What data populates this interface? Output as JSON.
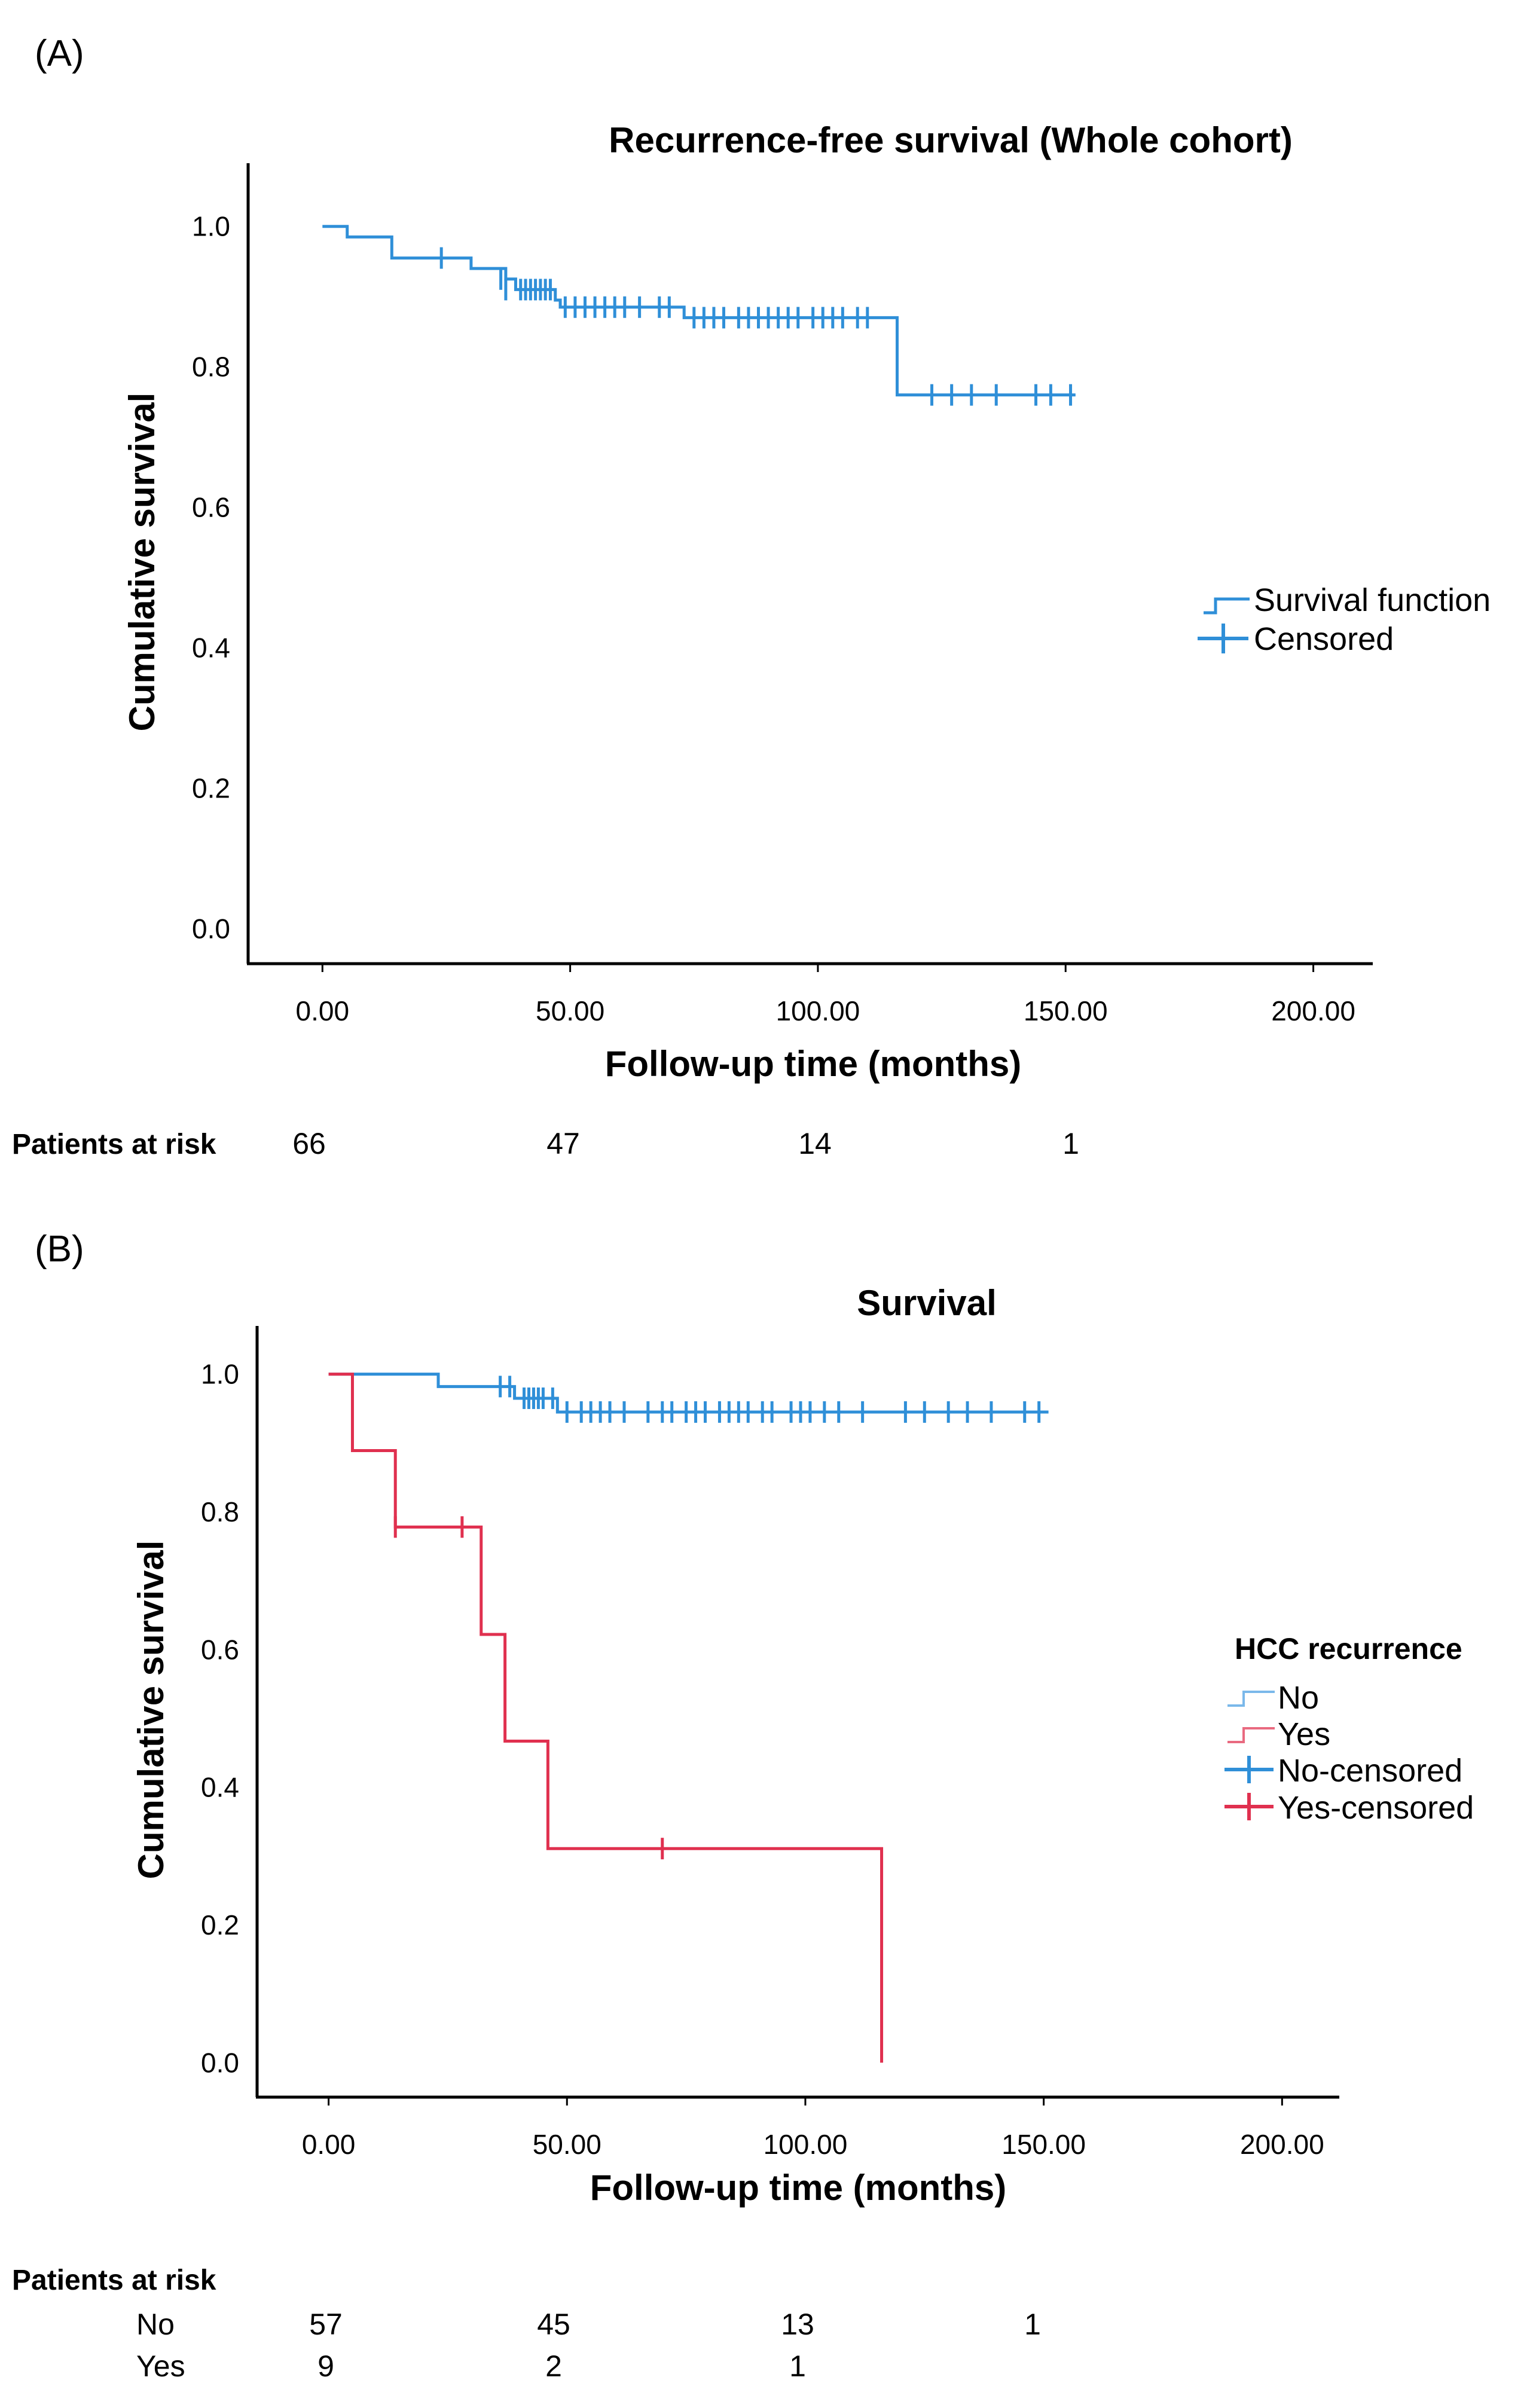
{
  "chart_data": [
    {
      "panel_label": "(A)",
      "type": "line",
      "subtype": "kaplan-meier",
      "title": "Recurrence-free survival (Whole cohort)",
      "xlabel": "Follow-up time (months)",
      "ylabel": "Cumulative survival",
      "xlim": [
        -15,
        212
      ],
      "ylim": [
        -0.05,
        1.09
      ],
      "xticks": [
        0,
        50,
        100,
        150,
        200
      ],
      "xtick_labels": [
        "0.00",
        "50.00",
        "100.00",
        "150.00",
        "200.00"
      ],
      "yticks": [
        0,
        0.2,
        0.4,
        0.6,
        0.8,
        1.0
      ],
      "ytick_labels": [
        "0.0",
        "0.2",
        "0.4",
        "0.6",
        "0.8",
        "1.0"
      ],
      "color": "#2f8fd8",
      "series": [
        {
          "name": "Survival function",
          "color": "#2f8fd8",
          "steps": [
            [
              0,
              1.0
            ],
            [
              5,
              0.985
            ],
            [
              14,
              0.97
            ],
            [
              14,
              0.955
            ],
            [
              30,
              0.94
            ],
            [
              37,
              0.925
            ],
            [
              39,
              0.91
            ],
            [
              47,
              0.895
            ],
            [
              48,
              0.885
            ],
            [
              73,
              0.87
            ],
            [
              116,
              0.87
            ],
            [
              116,
              0.76
            ],
            [
              152,
              0.76
            ]
          ],
          "censored": [
            [
              24,
              0.955
            ],
            [
              36,
              0.925
            ],
            [
              37,
              0.91
            ],
            [
              40,
              0.91
            ],
            [
              41,
              0.91
            ],
            [
              42,
              0.91
            ],
            [
              43,
              0.91
            ],
            [
              44,
              0.91
            ],
            [
              45,
              0.91
            ],
            [
              46,
              0.91
            ],
            [
              49,
              0.885
            ],
            [
              51,
              0.885
            ],
            [
              53,
              0.885
            ],
            [
              55,
              0.885
            ],
            [
              57,
              0.885
            ],
            [
              59,
              0.885
            ],
            [
              61,
              0.885
            ],
            [
              64,
              0.885
            ],
            [
              68,
              0.885
            ],
            [
              70,
              0.885
            ],
            [
              75,
              0.87
            ],
            [
              77,
              0.87
            ],
            [
              79,
              0.87
            ],
            [
              81,
              0.87
            ],
            [
              84,
              0.87
            ],
            [
              86,
              0.87
            ],
            [
              88,
              0.87
            ],
            [
              90,
              0.87
            ],
            [
              92,
              0.87
            ],
            [
              94,
              0.87
            ],
            [
              96,
              0.87
            ],
            [
              99,
              0.87
            ],
            [
              101,
              0.87
            ],
            [
              103,
              0.87
            ],
            [
              105,
              0.87
            ],
            [
              108,
              0.87
            ],
            [
              110,
              0.87
            ],
            [
              123,
              0.76
            ],
            [
              127,
              0.76
            ],
            [
              131,
              0.76
            ],
            [
              136,
              0.76
            ],
            [
              144,
              0.76
            ],
            [
              147,
              0.76
            ],
            [
              151,
              0.76
            ]
          ]
        }
      ],
      "legend": [
        "Survival function",
        "Censored"
      ],
      "risk_table": {
        "header": "Patients at risk",
        "rows": [
          {
            "label": "",
            "values": [
              "66",
              "47",
              "14",
              "1"
            ]
          }
        ]
      }
    },
    {
      "panel_label": "(B)",
      "type": "line",
      "subtype": "kaplan-meier",
      "title": "Survival",
      "xlabel": "Follow-up time (months)",
      "ylabel": "Cumulative survival",
      "xlim": [
        -15,
        212
      ],
      "ylim": [
        -0.05,
        1.07
      ],
      "xticks": [
        0,
        50,
        100,
        150,
        200
      ],
      "xtick_labels": [
        "0.00",
        "50.00",
        "100.00",
        "150.00",
        "200.00"
      ],
      "yticks": [
        0,
        0.2,
        0.4,
        0.6,
        0.8,
        1.0
      ],
      "ytick_labels": [
        "0.0",
        "0.2",
        "0.4",
        "0.6",
        "0.8",
        "1.0"
      ],
      "legend_title": "HCC recurrence",
      "legend": [
        "No",
        "Yes",
        "No-censored",
        "Yes-censored"
      ],
      "series": [
        {
          "name": "No",
          "color": "#2f8fd8",
          "steps": [
            [
              0,
              1.0
            ],
            [
              23,
              0.982
            ],
            [
              39,
              0.965
            ],
            [
              48,
              0.945
            ],
            [
              151,
              0.945
            ]
          ],
          "censored": [
            [
              36,
              0.982
            ],
            [
              38,
              0.982
            ],
            [
              41,
              0.965
            ],
            [
              42,
              0.965
            ],
            [
              43,
              0.965
            ],
            [
              44,
              0.965
            ],
            [
              45,
              0.965
            ],
            [
              47,
              0.965
            ],
            [
              50,
              0.945
            ],
            [
              53,
              0.945
            ],
            [
              55,
              0.945
            ],
            [
              57,
              0.945
            ],
            [
              59,
              0.945
            ],
            [
              62,
              0.945
            ],
            [
              67,
              0.945
            ],
            [
              70,
              0.945
            ],
            [
              72,
              0.945
            ],
            [
              75,
              0.945
            ],
            [
              77,
              0.945
            ],
            [
              79,
              0.945
            ],
            [
              82,
              0.945
            ],
            [
              84,
              0.945
            ],
            [
              86,
              0.945
            ],
            [
              88,
              0.945
            ],
            [
              91,
              0.945
            ],
            [
              93,
              0.945
            ],
            [
              97,
              0.945
            ],
            [
              99,
              0.945
            ],
            [
              101,
              0.945
            ],
            [
              104,
              0.945
            ],
            [
              107,
              0.945
            ],
            [
              112,
              0.945
            ],
            [
              121,
              0.945
            ],
            [
              125,
              0.945
            ],
            [
              130,
              0.945
            ],
            [
              134,
              0.945
            ],
            [
              139,
              0.945
            ],
            [
              146,
              0.945
            ],
            [
              149,
              0.945
            ]
          ]
        },
        {
          "name": "Yes",
          "color": "#e0304f",
          "steps": [
            [
              0,
              1.0
            ],
            [
              5,
              0.889
            ],
            [
              14,
              0.778
            ],
            [
              32,
              0.622
            ],
            [
              37,
              0.467
            ],
            [
              46,
              0.311
            ],
            [
              116,
              0.311
            ],
            [
              116,
              0.0
            ]
          ],
          "censored": [
            [
              14,
              0.778
            ],
            [
              28,
              0.778
            ],
            [
              70,
              0.311
            ]
          ]
        }
      ],
      "risk_table": {
        "header": "Patients at risk",
        "rows": [
          {
            "label": "No",
            "values": [
              "57",
              "45",
              "13",
              "1"
            ]
          },
          {
            "label": "Yes",
            "values": [
              "9",
              "2",
              "1",
              ""
            ]
          }
        ]
      }
    }
  ]
}
